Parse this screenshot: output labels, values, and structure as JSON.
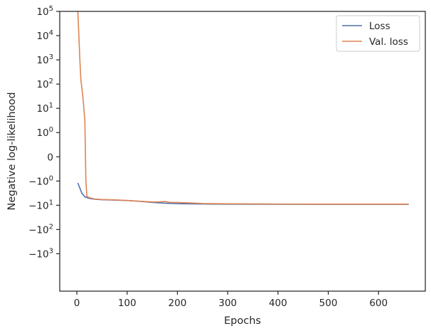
{
  "chart_data": {
    "type": "line",
    "title": "",
    "xlabel": "Epochs",
    "ylabel": "Negative log-likelihood",
    "yscale": "symlog",
    "xlim": [
      -34,
      693
    ],
    "ylim": [
      -35000,
      100000
    ],
    "x_ticks": [
      0,
      100,
      200,
      300,
      400,
      500,
      600
    ],
    "y_ticks": [
      {
        "value": 100000,
        "label": "10^5"
      },
      {
        "value": 10000,
        "label": "10^4"
      },
      {
        "value": 1000,
        "label": "10^3"
      },
      {
        "value": 100,
        "label": "10^2"
      },
      {
        "value": 10,
        "label": "10^1"
      },
      {
        "value": 1,
        "label": "10^0"
      },
      {
        "value": 0,
        "label": "0"
      },
      {
        "value": -1,
        "label": "−10^0"
      },
      {
        "value": -10,
        "label": "−10^1"
      },
      {
        "value": -100,
        "label": "−10^2"
      },
      {
        "value": -1000,
        "label": "−10^3"
      }
    ],
    "grid": false,
    "legend_position": "top-right",
    "series": [
      {
        "name": "Loss",
        "color": "#4c72b0",
        "x": [
          2,
          10,
          16,
          25,
          35,
          50,
          75,
          100,
          125,
          150,
          175,
          200,
          250,
          300,
          400,
          500,
          660
        ],
        "y": [
          -1.2,
          -3.2,
          -4.5,
          -5.2,
          -5.6,
          -5.9,
          -6.1,
          -6.4,
          -6.9,
          -7.6,
          -8.2,
          -8.6,
          -8.9,
          -9.0,
          -9.1,
          -9.2,
          -9.2
        ]
      },
      {
        "name": "Val. loss",
        "color": "#dd8452",
        "x": [
          2,
          4,
          6,
          8,
          10,
          12,
          14,
          16,
          18,
          20,
          25,
          35,
          50,
          75,
          100,
          125,
          150,
          165,
          175,
          185,
          200,
          225,
          250,
          300,
          400,
          500,
          660
        ],
        "y": [
          100000,
          10000,
          1000,
          150,
          70,
          30,
          10,
          3,
          -1,
          -4.3,
          -4.9,
          -5.5,
          -5.8,
          -6.0,
          -6.3,
          -6.8,
          -7.3,
          -7.2,
          -7.0,
          -7.6,
          -7.7,
          -8.0,
          -8.5,
          -8.7,
          -8.9,
          -9.0,
          -9.0
        ]
      }
    ]
  }
}
